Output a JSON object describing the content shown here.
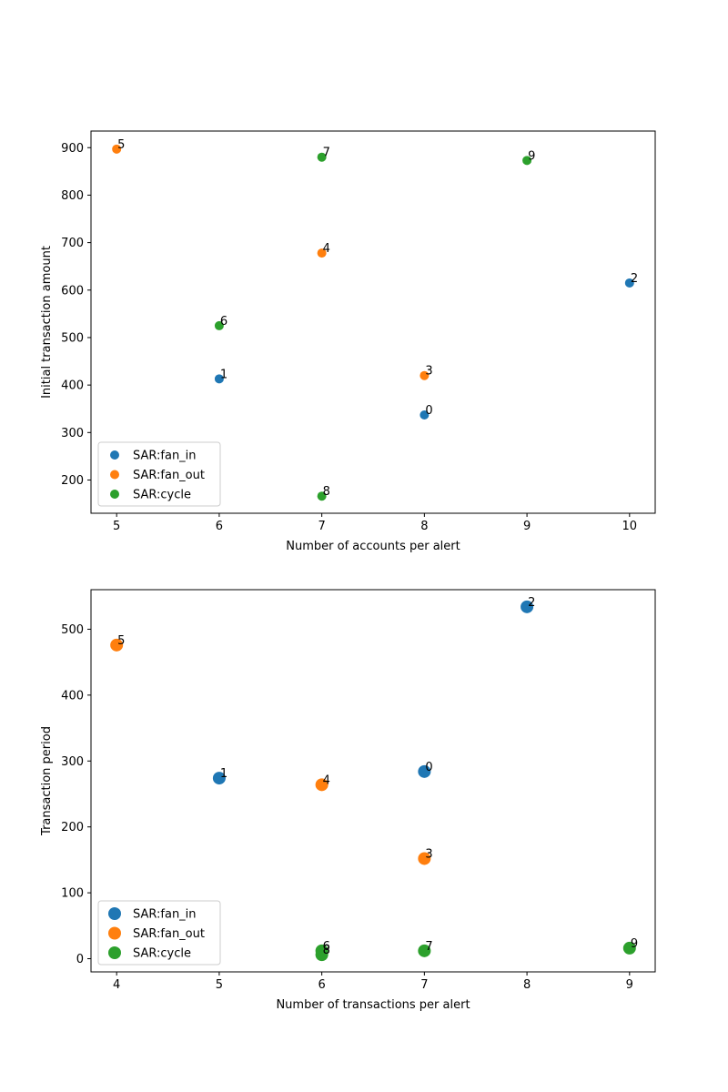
{
  "chart_data": [
    {
      "type": "scatter",
      "title": "",
      "xlabel": "Number of accounts per alert",
      "ylabel": "Initial transaction amount",
      "xlim": [
        4.75,
        10.25
      ],
      "ylim": [
        130,
        935
      ],
      "xticks": [
        5,
        6,
        7,
        8,
        9,
        10
      ],
      "yticks": [
        200,
        300,
        400,
        500,
        600,
        700,
        800,
        900
      ],
      "legend_position": "lower-left",
      "series": [
        {
          "name": "SAR:fan_in",
          "color": "#1f77b4",
          "points": [
            {
              "x": 8,
              "y": 337,
              "label": "0"
            },
            {
              "x": 6,
              "y": 413,
              "label": "1"
            },
            {
              "x": 10,
              "y": 615,
              "label": "2"
            }
          ]
        },
        {
          "name": "SAR:fan_out",
          "color": "#ff7f0e",
          "points": [
            {
              "x": 8,
              "y": 420,
              "label": "3"
            },
            {
              "x": 7,
              "y": 678,
              "label": "4"
            },
            {
              "x": 5,
              "y": 897,
              "label": "5"
            }
          ]
        },
        {
          "name": "SAR:cycle",
          "color": "#2ca02c",
          "points": [
            {
              "x": 6,
              "y": 525,
              "label": "6"
            },
            {
              "x": 7,
              "y": 880,
              "label": "7"
            },
            {
              "x": 7,
              "y": 166,
              "label": "8"
            },
            {
              "x": 9,
              "y": 873,
              "label": "9"
            }
          ]
        }
      ]
    },
    {
      "type": "scatter",
      "title": "",
      "xlabel": "Number of transactions per alert",
      "ylabel": "Transaction period",
      "xlim": [
        3.75,
        9.25
      ],
      "ylim": [
        -20,
        560
      ],
      "xticks": [
        4,
        5,
        6,
        7,
        8,
        9
      ],
      "yticks": [
        0,
        100,
        200,
        300,
        400,
        500
      ],
      "legend_position": "lower-left",
      "series": [
        {
          "name": "SAR:fan_in",
          "color": "#1f77b4",
          "points": [
            {
              "x": 7,
              "y": 284,
              "label": "0"
            },
            {
              "x": 5,
              "y": 274,
              "label": "1"
            },
            {
              "x": 8,
              "y": 534,
              "label": "2"
            }
          ]
        },
        {
          "name": "SAR:fan_out",
          "color": "#ff7f0e",
          "points": [
            {
              "x": 7,
              "y": 152,
              "label": "3"
            },
            {
              "x": 6,
              "y": 264,
              "label": "4"
            },
            {
              "x": 4,
              "y": 476,
              "label": "5"
            }
          ]
        },
        {
          "name": "SAR:cycle",
          "color": "#2ca02c",
          "points": [
            {
              "x": 6,
              "y": 12,
              "label": "6"
            },
            {
              "x": 7,
              "y": 12,
              "label": "7"
            },
            {
              "x": 6,
              "y": 6,
              "label": "8"
            },
            {
              "x": 9,
              "y": 16,
              "label": "9"
            }
          ]
        }
      ]
    }
  ]
}
